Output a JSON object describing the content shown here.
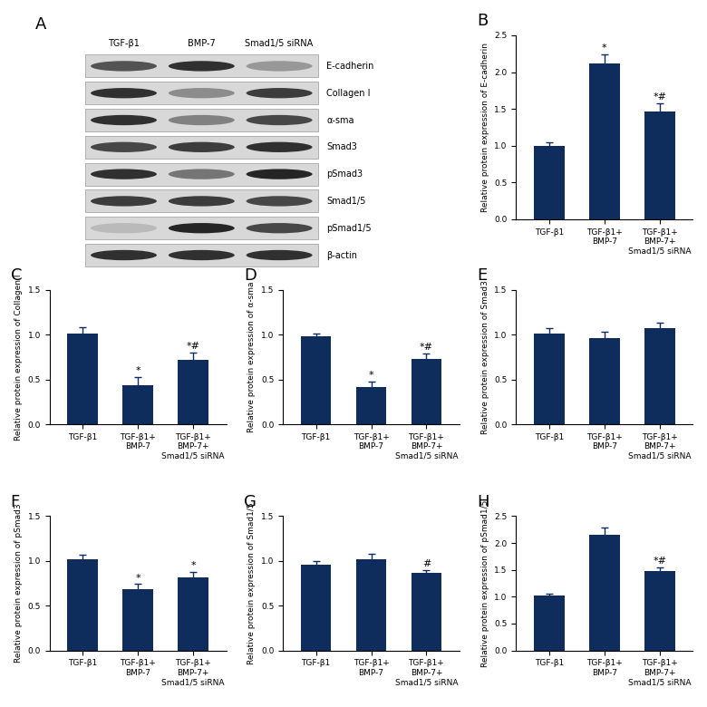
{
  "blot": {
    "panel": "A",
    "columns": [
      "TGF-β1",
      "BMP-7",
      "Smad1/5 siRNA"
    ],
    "rows": [
      {
        "label": "E-cadherin",
        "intensity": [
          0.75,
          0.9,
          0.45
        ]
      },
      {
        "label": "Collagen I",
        "intensity": [
          0.9,
          0.5,
          0.85
        ]
      },
      {
        "label": "α-sma",
        "intensity": [
          0.9,
          0.55,
          0.8
        ]
      },
      {
        "label": "Smad3",
        "intensity": [
          0.8,
          0.85,
          0.9
        ]
      },
      {
        "label": "pSmad3",
        "intensity": [
          0.9,
          0.6,
          0.95
        ]
      },
      {
        "label": "Smad1/5",
        "intensity": [
          0.85,
          0.85,
          0.8
        ]
      },
      {
        "label": "pSmad1/5",
        "intensity": [
          0.3,
          0.95,
          0.8
        ]
      },
      {
        "label": "β-actin",
        "intensity": [
          0.9,
          0.9,
          0.9
        ]
      }
    ]
  },
  "chart_data": [
    {
      "type": "bar",
      "panel": "B",
      "color": "#0f2d5c",
      "categories": [
        "TGF-β1",
        "TGF-β1+\nBMP-7",
        "TGF-β1+\nBMP-7+\nSmad1/5 siRNA"
      ],
      "values": [
        1.0,
        2.12,
        1.47
      ],
      "errors": [
        0.04,
        0.12,
        0.1
      ],
      "annotations": [
        null,
        "*",
        "*#"
      ],
      "ylabel": "Relative protein expression of E-cadherin",
      "ylim": [
        0.0,
        2.5
      ],
      "yticks": [
        0.0,
        0.5,
        1.0,
        1.5,
        2.0,
        2.5
      ]
    },
    {
      "type": "bar",
      "panel": "C",
      "color": "#0f2d5c",
      "categories": [
        "TGF-β1",
        "TGF-β1+\nBMP-7",
        "TGF-β1+\nBMP-7+\nSmad1/5 siRNA"
      ],
      "values": [
        1.01,
        0.44,
        0.72
      ],
      "errors": [
        0.07,
        0.09,
        0.08
      ],
      "annotations": [
        null,
        "*",
        "*#"
      ],
      "ylabel": "Relative protein expression of Collagen I",
      "ylim": [
        0.0,
        1.5
      ],
      "yticks": [
        0.0,
        0.5,
        1.0,
        1.5
      ]
    },
    {
      "type": "bar",
      "panel": "D",
      "color": "#0f2d5c",
      "categories": [
        "TGF-β1",
        "TGF-β1+\nBMP-7",
        "TGF-β1+\nBMP-7+\nSmad1/5 siRNA"
      ],
      "values": [
        0.98,
        0.41,
        0.73
      ],
      "errors": [
        0.03,
        0.07,
        0.06
      ],
      "annotations": [
        null,
        "*",
        "*#"
      ],
      "ylabel": "Relative protein expression of α-sma",
      "ylim": [
        0.0,
        1.5
      ],
      "yticks": [
        0.0,
        0.5,
        1.0,
        1.5
      ]
    },
    {
      "type": "bar",
      "panel": "E",
      "color": "#0f2d5c",
      "categories": [
        "TGF-β1",
        "TGF-β1+\nBMP-7",
        "TGF-β1+\nBMP-7+\nSmad1/5 siRNA"
      ],
      "values": [
        1.01,
        0.96,
        1.07
      ],
      "errors": [
        0.06,
        0.07,
        0.06
      ],
      "annotations": [
        null,
        null,
        null
      ],
      "ylabel": "Relative protein expression of Smad3",
      "ylim": [
        0.0,
        1.5
      ],
      "yticks": [
        0.0,
        0.5,
        1.0,
        1.5
      ]
    },
    {
      "type": "bar",
      "panel": "F",
      "color": "#0f2d5c",
      "categories": [
        "TGF-β1",
        "TGF-β1+\nBMP-7",
        "TGF-β1+\nBMP-7+\nSmad1/5 siRNA"
      ],
      "values": [
        1.02,
        0.68,
        0.82
      ],
      "errors": [
        0.05,
        0.06,
        0.06
      ],
      "annotations": [
        null,
        "*",
        "*"
      ],
      "ylabel": "Relative protein expression of pSmad3",
      "ylim": [
        0.0,
        1.5
      ],
      "yticks": [
        0.0,
        0.5,
        1.0,
        1.5
      ]
    },
    {
      "type": "bar",
      "panel": "G",
      "color": "#0f2d5c",
      "categories": [
        "TGF-β1",
        "TGF-β1+\nBMP-7",
        "TGF-β1+\nBMP-7+\nSmad1/5 siRNA"
      ],
      "values": [
        0.96,
        1.02,
        0.87
      ],
      "errors": [
        0.04,
        0.06,
        0.03
      ],
      "annotations": [
        null,
        null,
        "#"
      ],
      "ylabel": "Relative protein expression of Smad1/5",
      "ylim": [
        0.0,
        1.5
      ],
      "yticks": [
        0.0,
        0.5,
        1.0,
        1.5
      ]
    },
    {
      "type": "bar",
      "panel": "H",
      "color": "#0f2d5c",
      "categories": [
        "TGF-β1",
        "TGF-β1+\nBMP-7",
        "TGF-β1+\nBMP-7+\nSmad1/5 siRNA"
      ],
      "values": [
        1.02,
        2.15,
        1.47
      ],
      "errors": [
        0.03,
        0.14,
        0.08
      ],
      "annotations": [
        null,
        null,
        "*#"
      ],
      "ylabel": "Relative protein expression of pSmad1/5",
      "ylim": [
        0.0,
        2.5
      ],
      "yticks": [
        0.0,
        0.5,
        1.0,
        1.5,
        2.0,
        2.5
      ]
    }
  ]
}
